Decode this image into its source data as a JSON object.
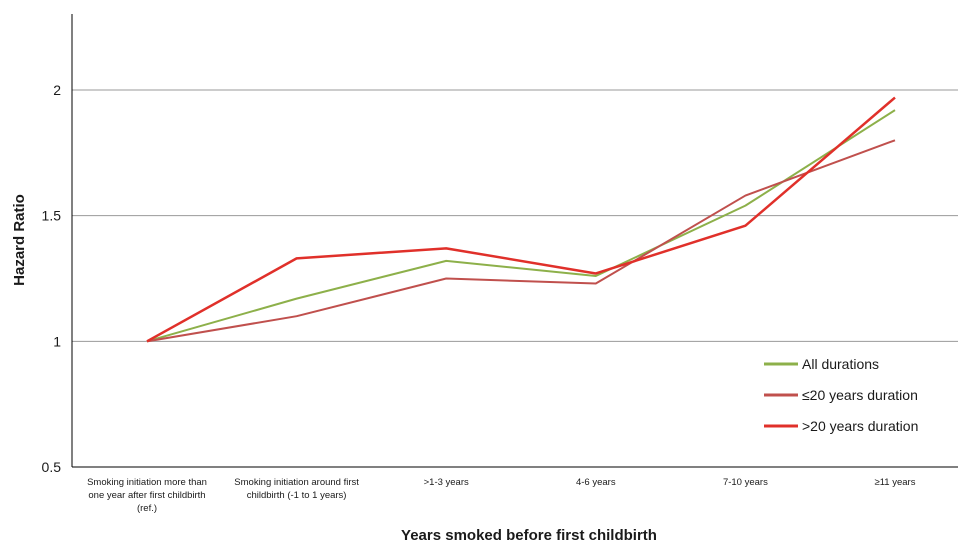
{
  "chart_data": {
    "type": "line",
    "title": "",
    "xlabel": "Years smoked before first childbirth",
    "ylabel": "Hazard Ratio",
    "ylim": [
      0.5,
      2.3
    ],
    "yticks": [
      0.5,
      1,
      1.5,
      2
    ],
    "ytick_labels": [
      "0.5",
      "1",
      "1.5",
      "2"
    ],
    "grid": "horizontal",
    "legend_position": "bottom-right",
    "categories": [
      "Smoking initiation more than one year after first childbirth (ref.)",
      "Smoking initiation around first childbirth (-1 to 1 years)",
      ">1-3 years",
      "4-6 years",
      "7-10 years",
      "≥11 years"
    ],
    "category_lines": [
      [
        "Smoking initiation more than",
        "one year after first childbirth",
        "(ref.)"
      ],
      [
        "Smoking initiation around first",
        "childbirth (-1 to 1 years)"
      ],
      [
        ">1-3 years"
      ],
      [
        "4-6 years"
      ],
      [
        "7-10 years"
      ],
      [
        "≥11 years"
      ]
    ],
    "series": [
      {
        "name": "All durations",
        "color": "#8db04a",
        "values": [
          1.0,
          1.17,
          1.32,
          1.26,
          1.54,
          1.92
        ]
      },
      {
        "name": "≤20 years duration",
        "color": "#c0504d",
        "values": [
          1.0,
          1.1,
          1.25,
          1.23,
          1.58,
          1.8
        ]
      },
      {
        "name": ">20 years duration",
        "color": "#e0302a",
        "values": [
          1.0,
          1.33,
          1.37,
          1.27,
          1.46,
          1.97
        ]
      }
    ]
  }
}
